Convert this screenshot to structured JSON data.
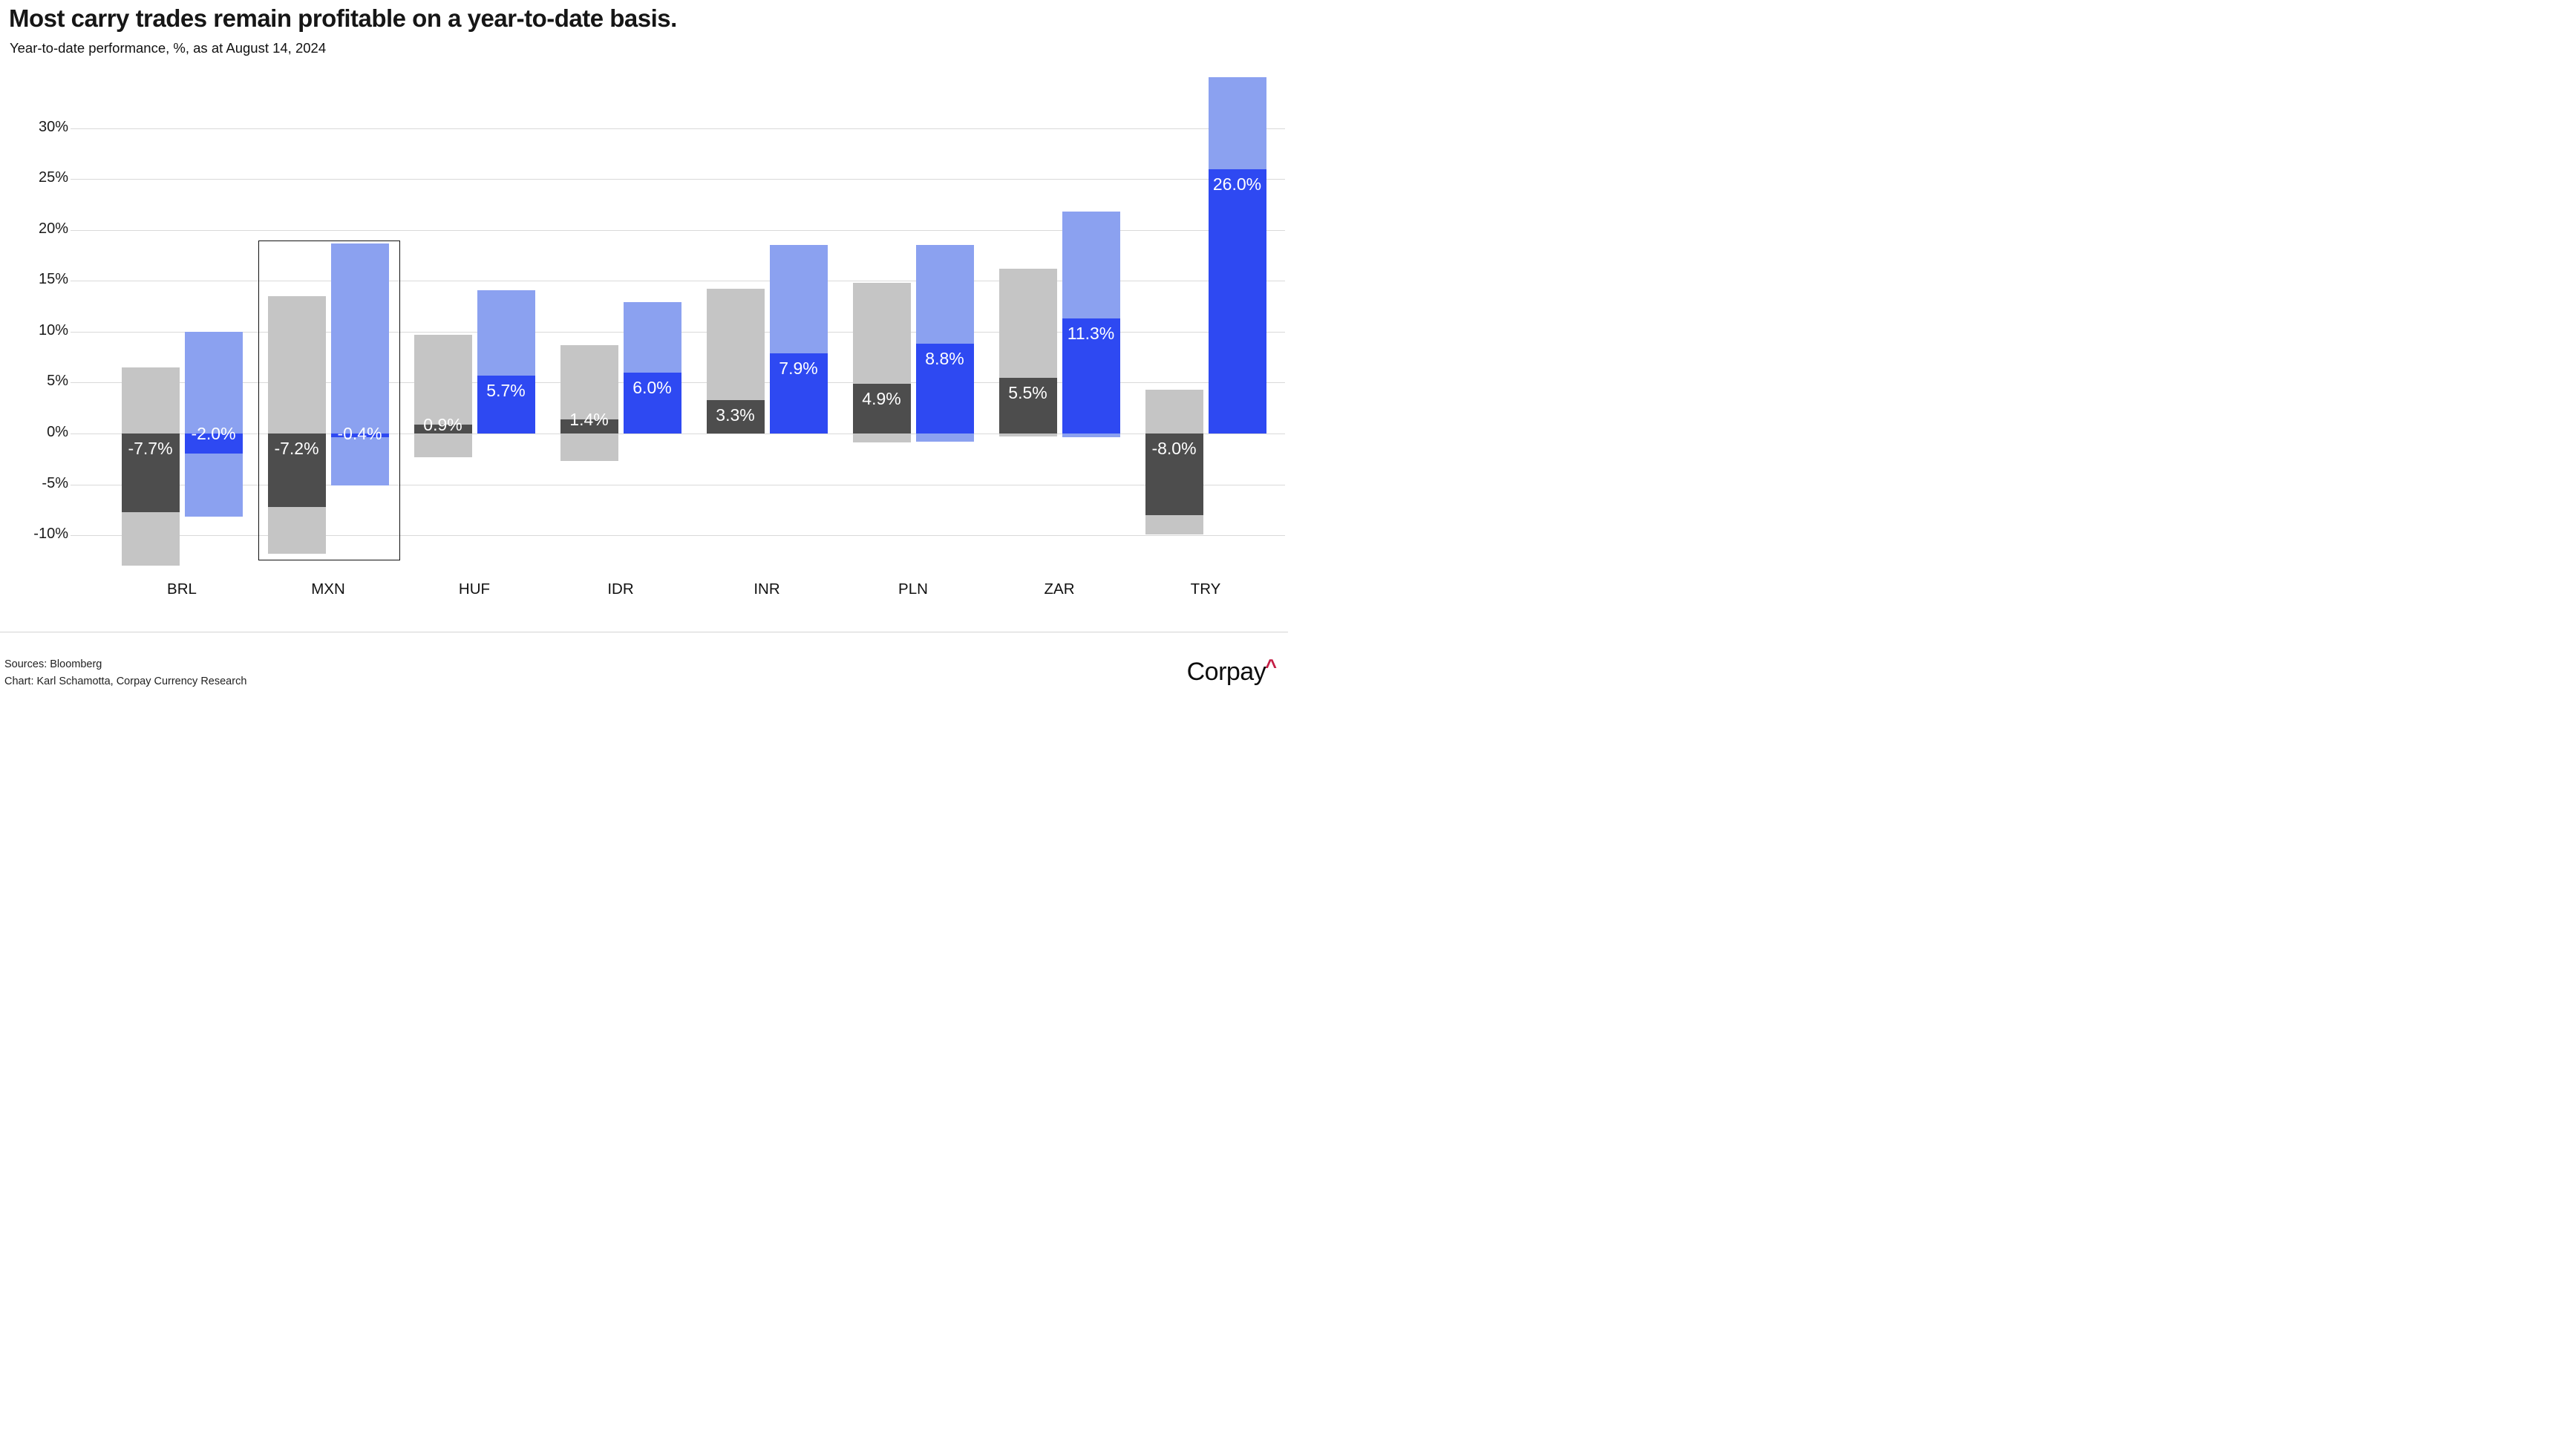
{
  "header": {
    "title": "Most carry trades remain profitable on a year-to-date basis.",
    "subtitle": "Year-to-date performance, %, as at August 14, 2024"
  },
  "footer": {
    "sources": "Sources: Bloomberg",
    "credit": "Chart: Karl Schamotta, Corpay Currency Research",
    "logo_text": "Corpay",
    "logo_caret": "^"
  },
  "colors": {
    "light_gray": "#c5c5c5",
    "dark_gray": "#4d4d4d",
    "light_blue": "#8ba1f0",
    "dark_blue": "#2e49f2",
    "grid": "#d9d9d9",
    "highlight_border": "#111111",
    "logo_red": "#c41e45"
  },
  "chart_data": {
    "type": "bar",
    "title": "Most carry trades remain profitable on a year-to-date basis.",
    "subtitle": "Year-to-date performance, %, as at August 14, 2024",
    "grid": true,
    "legend": "none",
    "unit": "%",
    "ylim": [
      -13.5,
      35.0
    ],
    "categories": [
      "BRL",
      "MXN",
      "HUF",
      "IDR",
      "INR",
      "PLN",
      "ZAR",
      "TRY"
    ],
    "series": [
      {
        "role": "spot_range",
        "color_key": "light_gray",
        "ranges": [
          [
            6.5,
            -13.0
          ],
          [
            13.5,
            -11.8
          ],
          [
            9.7,
            -2.3
          ],
          [
            8.7,
            -2.7
          ],
          [
            14.2,
            0.0
          ],
          [
            14.8,
            -0.9
          ],
          [
            16.2,
            -0.3
          ],
          [
            4.3,
            -9.9
          ]
        ]
      },
      {
        "role": "spot_return",
        "color_key": "dark_gray",
        "values": [
          -7.7,
          -7.2,
          0.9,
          1.4,
          3.3,
          4.9,
          5.5,
          -8.0
        ],
        "labels": [
          "-7.7%",
          "-7.2%",
          "0.9%",
          "1.4%",
          "3.3%",
          "4.9%",
          "5.5%",
          "-8.0%"
        ]
      },
      {
        "role": "total_range",
        "color_key": "light_blue",
        "ranges": [
          [
            10.0,
            -8.2
          ],
          [
            18.7,
            -5.1
          ],
          [
            14.1,
            0.0
          ],
          [
            12.9,
            0.0
          ],
          [
            18.5,
            0.0
          ],
          [
            18.5,
            -0.8
          ],
          [
            21.8,
            -0.4
          ],
          [
            35.0,
            0.0
          ]
        ]
      },
      {
        "role": "total_return",
        "color_key": "dark_blue",
        "values": [
          -2.0,
          -0.4,
          5.7,
          6.0,
          7.9,
          8.8,
          11.3,
          26.0
        ],
        "labels": [
          "-2.0%",
          "-0.4%",
          "5.7%",
          "6.0%",
          "7.9%",
          "8.8%",
          "11.3%",
          "26.0%"
        ]
      }
    ],
    "y_axis": {
      "ticks": [
        {
          "value": 30,
          "label": "30%"
        },
        {
          "value": 25,
          "label": "25%"
        },
        {
          "value": 20,
          "label": "20%"
        },
        {
          "value": 15,
          "label": "15%"
        },
        {
          "value": 10,
          "label": "10%"
        },
        {
          "value": 5,
          "label": "5%"
        },
        {
          "value": 0,
          "label": "0%"
        },
        {
          "value": -5,
          "label": "-5%"
        },
        {
          "value": -10,
          "label": "-10%"
        }
      ]
    },
    "highlight": {
      "category": "MXN",
      "top": 19.0,
      "bottom": -12.3
    }
  }
}
